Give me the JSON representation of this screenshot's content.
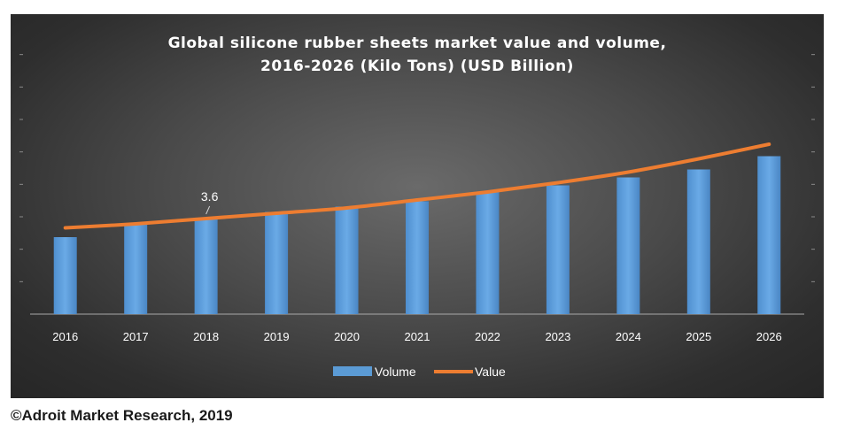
{
  "chart_data": {
    "type": "bar",
    "title": "Global silicone rubber sheets market value and volume,",
    "subtitle": "2016-2026  (Kilo Tons) (USD Billion)",
    "categories": [
      "2016",
      "2017",
      "2018",
      "2019",
      "2020",
      "2021",
      "2022",
      "2023",
      "2024",
      "2025",
      "2026"
    ],
    "series": [
      {
        "name": "Volume",
        "type": "bar",
        "color": "#5b9bd5",
        "values": [
          2.9,
          3.4,
          3.6,
          3.85,
          4.05,
          4.25,
          4.6,
          4.85,
          5.15,
          5.45,
          5.95
        ]
      },
      {
        "name": "Value",
        "type": "line",
        "color": "#ed7d31",
        "values": [
          3.25,
          3.4,
          3.6,
          3.8,
          4.0,
          4.3,
          4.6,
          4.95,
          5.35,
          5.85,
          6.4
        ]
      }
    ],
    "data_labels": [
      {
        "series": "Value",
        "category": "2018",
        "text": "3.6"
      }
    ],
    "ylim": [
      0,
      10
    ],
    "legend_position": "bottom",
    "grid": false
  },
  "footer": {
    "credit": "©Adroit Market Research, 2019"
  }
}
